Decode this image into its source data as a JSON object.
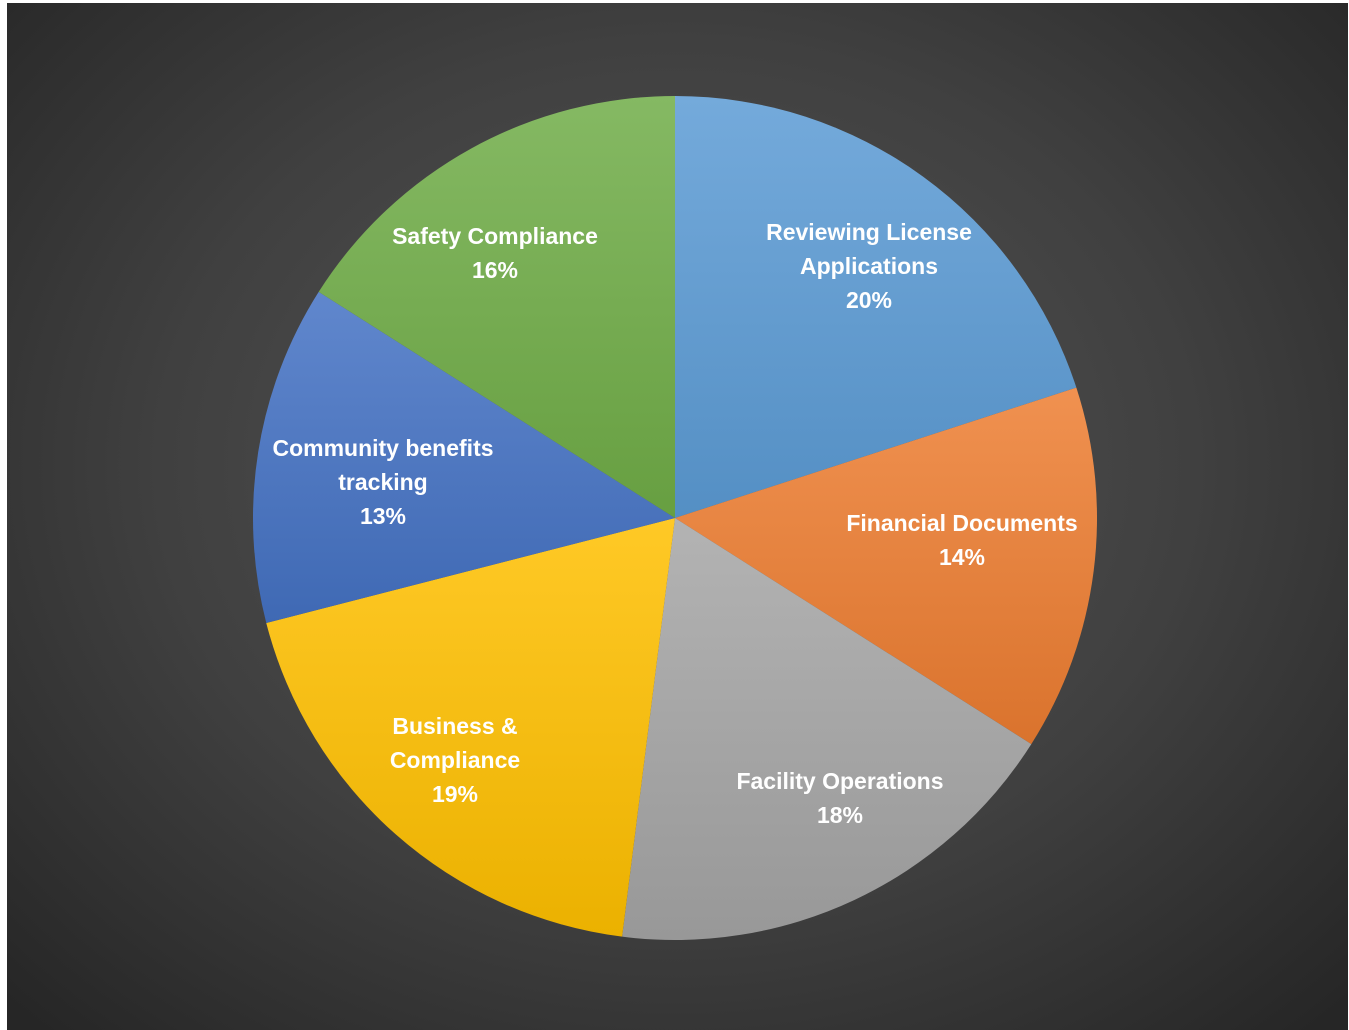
{
  "chart_data": {
    "type": "pie",
    "title": "",
    "start_angle": "12 o'clock, clockwise",
    "slices": [
      {
        "label": [
          "Reviewing License",
          "Applications"
        ],
        "value": 20,
        "value_label": "20%",
        "color": "#5B9BD5"
      },
      {
        "label": [
          "Financial Documents"
        ],
        "value": 14,
        "value_label": "14%",
        "color": "#ED7D31"
      },
      {
        "label": [
          "Facility Operations"
        ],
        "value": 18,
        "value_label": "18%",
        "color": "#A5A5A5"
      },
      {
        "label": [
          "Business &",
          "Compliance"
        ],
        "value": 19,
        "value_label": "19%",
        "color": "#FFC000"
      },
      {
        "label": [
          "Community benefits",
          "tracking"
        ],
        "value": 13,
        "value_label": "13%",
        "color": "#4472C4"
      },
      {
        "label": [
          "Safety Compliance"
        ],
        "value": 16,
        "value_label": "16%",
        "color": "#70AD47"
      }
    ]
  }
}
